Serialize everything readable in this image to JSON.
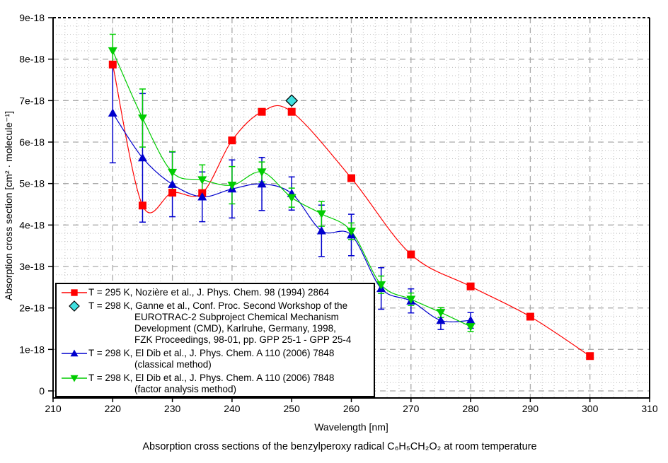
{
  "colors": {
    "red": "#ff0000",
    "blue": "#0000cd",
    "green": "#00cc00",
    "cyan": "#40e0e0",
    "grid_major": "#aaaaaa",
    "grid_minor": "#bfbfbf",
    "axis": "#000000",
    "background": "#ffffff"
  },
  "chart_data": {
    "type": "line",
    "title": "Absorption cross sections of the benzylperoxy radical C₆H₅CH₂O₂ at room temperature",
    "xlabel": "Wavelength [nm]",
    "ylabel": "Absorption cross section [cm² · molecule⁻¹]",
    "xlim": [
      210,
      310
    ],
    "ylim_1e18": [
      0,
      9
    ],
    "x_major_ticks": [
      210,
      220,
      230,
      240,
      250,
      260,
      270,
      280,
      290,
      300,
      310
    ],
    "x_tick_labels": [
      "210",
      "220",
      "230",
      "240",
      "250",
      "260",
      "270",
      "280",
      "290",
      "300",
      "310"
    ],
    "x_minor_step": 2,
    "y_major_ticks": [
      0,
      1,
      2,
      3,
      4,
      5,
      6,
      7,
      8,
      9
    ],
    "y_tick_labels": [
      "0",
      "1e-18",
      "2e-18",
      "3e-18",
      "4e-18",
      "5e-18",
      "6e-18",
      "7e-18",
      "8e-18",
      "9e-18"
    ],
    "y_minor_step": 0.2,
    "grid": true,
    "legend_position": "bottom-left",
    "y_values_unit": "1e-18 cm2/molecule",
    "series": [
      {
        "id": "noziere-1994",
        "legend_lines": [
          "T = 295 K, Nozière et al., J. Phys. Chem. 98 (1994) 2864"
        ],
        "color_key": "red",
        "marker": "square",
        "line": true,
        "x": [
          220,
          225,
          230,
          235,
          240,
          245,
          250,
          260,
          270,
          280,
          290,
          300
        ],
        "y": [
          7.87,
          4.47,
          4.78,
          4.77,
          6.04,
          6.73,
          6.73,
          5.13,
          3.29,
          2.52,
          1.79,
          0.84
        ],
        "yerr": null
      },
      {
        "id": "ganne-1998",
        "legend_lines": [
          "T = 298 K, Ganne et al., Conf. Proc. Second Workshop of the",
          "EUROTRAC-2 Subproject Chemical Mechanism",
          "Development (CMD), Karlruhe, Germany, 1998,",
          "FZK Proceedings, 98-01, pp. GPP 25-1 - GPP 25-4"
        ],
        "color_key": "cyan",
        "marker": "diamond",
        "line": false,
        "x": [
          250
        ],
        "y": [
          7.0
        ],
        "yerr": null
      },
      {
        "id": "eldib-2006-classical",
        "legend_lines": [
          "T = 298 K, El Dib et al., J. Phys. Chem. A 110 (2006) 7848",
          "(classical method)"
        ],
        "color_key": "blue",
        "marker": "triangle-up",
        "line": true,
        "x": [
          220,
          225,
          230,
          235,
          240,
          245,
          250,
          255,
          260,
          265,
          270,
          275,
          280
        ],
        "y": [
          6.7,
          5.62,
          4.98,
          4.68,
          4.87,
          4.99,
          4.76,
          3.86,
          3.76,
          2.47,
          2.17,
          1.7,
          1.7
        ],
        "yerr": [
          1.2,
          1.55,
          0.78,
          0.6,
          0.7,
          0.64,
          0.4,
          0.62,
          0.5,
          0.5,
          0.29,
          0.22,
          0.19
        ]
      },
      {
        "id": "eldib-2006-factor",
        "legend_lines": [
          "T = 298 K, El Dib et al., J. Phys. Chem. A 110 (2006) 7848",
          "(factor analysis method)"
        ],
        "color_key": "green",
        "marker": "triangle-down",
        "line": true,
        "x": [
          220,
          225,
          230,
          235,
          240,
          245,
          250,
          255,
          260,
          265,
          270,
          275,
          280
        ],
        "y": [
          8.2,
          6.58,
          5.27,
          5.09,
          4.96,
          5.28,
          4.66,
          4.27,
          3.85,
          2.56,
          2.21,
          1.89,
          1.55
        ],
        "yerr": [
          0.4,
          0.7,
          0.5,
          0.36,
          0.45,
          0.24,
          0.23,
          0.3,
          0.2,
          0.21,
          0.15,
          0.12,
          0.12
        ]
      }
    ]
  }
}
